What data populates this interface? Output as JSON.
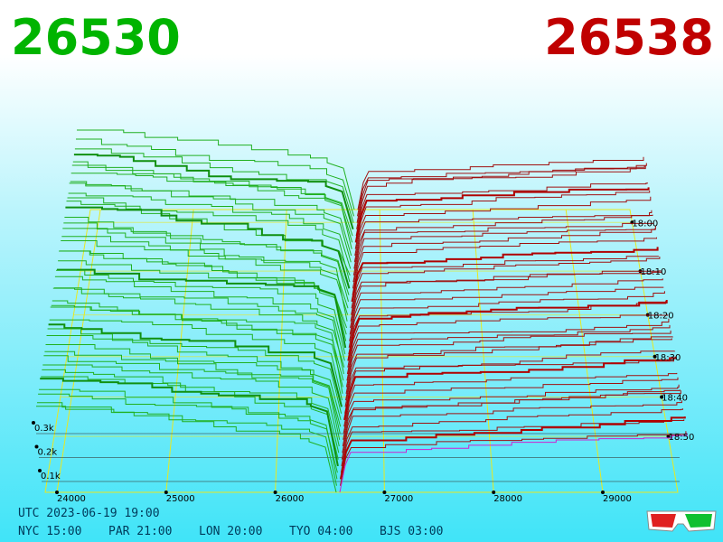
{
  "header": {
    "bid": "26530",
    "ask": "26538"
  },
  "price_labels": [
    "24000",
    "25000",
    "26000",
    "27000",
    "28000",
    "29000"
  ],
  "time_labels": [
    "18:00",
    "18:10",
    "18:20",
    "18:30",
    "18:40",
    "18:50"
  ],
  "volume_labels": [
    "0.3k",
    "0.2k",
    "0.1k"
  ],
  "footer": {
    "utc": "UTC 2023-06-19 19:00",
    "cities": [
      "NYC 15:00",
      "PAR 21:00",
      "LON 20:00",
      "TYO 04:00",
      "BJS 03:00"
    ]
  }
}
